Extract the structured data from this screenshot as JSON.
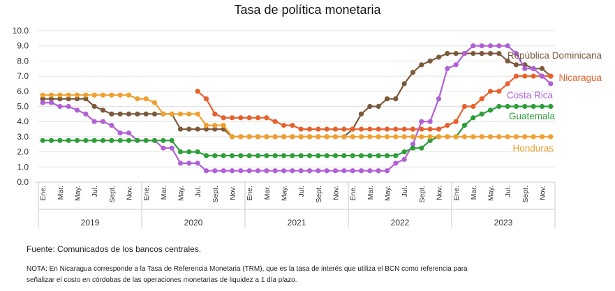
{
  "chart_data": {
    "type": "line",
    "title": "Tasa de política monetaria",
    "ylim": [
      0,
      10
    ],
    "yticks": [
      "0.0",
      "1.0",
      "2.0",
      "3.0",
      "4.0",
      "5.0",
      "6.0",
      "7.0",
      "8.0",
      "9.0",
      "10.0"
    ],
    "years": [
      "2019",
      "2020",
      "2021",
      "2022",
      "2023"
    ],
    "month_labels": [
      "Ene.",
      "Mar.",
      "May.",
      "Jul.",
      "Sept.",
      "Nov."
    ],
    "grid": true,
    "series": [
      {
        "name": "República Dominicana",
        "color": "#7a5a3a",
        "values": [
          5.5,
          5.5,
          5.5,
          5.5,
          5.5,
          5.5,
          5.0,
          4.75,
          4.5,
          4.5,
          4.5,
          4.5,
          4.5,
          4.5,
          4.5,
          4.5,
          3.5,
          3.5,
          3.5,
          3.5,
          3.5,
          3.5,
          3.0,
          3.0,
          3.0,
          3.0,
          3.0,
          3.0,
          3.0,
          3.0,
          3.0,
          3.0,
          3.0,
          3.0,
          3.0,
          3.0,
          3.5,
          4.5,
          5.0,
          5.0,
          5.5,
          5.5,
          6.5,
          7.25,
          7.75,
          8.0,
          8.25,
          8.5,
          8.5,
          8.5,
          8.5,
          8.5,
          8.5,
          8.5,
          8.0,
          7.75,
          7.75,
          7.5,
          7.5,
          7.0
        ]
      },
      {
        "name": "Nicaragua",
        "color": "#e8612c",
        "values": [
          null,
          null,
          null,
          null,
          null,
          null,
          null,
          null,
          null,
          null,
          null,
          null,
          null,
          null,
          null,
          null,
          null,
          null,
          6.0,
          5.5,
          4.5,
          4.25,
          4.25,
          4.25,
          4.25,
          4.25,
          4.25,
          4.0,
          3.75,
          3.75,
          3.5,
          3.5,
          3.5,
          3.5,
          3.5,
          3.5,
          3.5,
          3.5,
          3.5,
          3.5,
          3.5,
          3.5,
          3.5,
          3.5,
          3.5,
          3.5,
          3.5,
          3.75,
          4.0,
          5.0,
          5.0,
          5.5,
          6.0,
          6.0,
          6.5,
          7.0,
          7.0,
          7.0,
          7.0,
          7.0
        ]
      },
      {
        "name": "Costa Rica",
        "color": "#b160d6",
        "values": [
          5.25,
          5.25,
          5.0,
          5.0,
          4.75,
          4.5,
          4.0,
          4.0,
          3.75,
          3.25,
          3.25,
          2.75,
          2.75,
          2.75,
          2.25,
          2.25,
          1.25,
          1.25,
          1.25,
          0.75,
          0.75,
          0.75,
          0.75,
          0.75,
          0.75,
          0.75,
          0.75,
          0.75,
          0.75,
          0.75,
          0.75,
          0.75,
          0.75,
          0.75,
          0.75,
          0.75,
          0.75,
          0.75,
          0.75,
          0.75,
          0.75,
          1.25,
          1.5,
          2.5,
          4.0,
          4.0,
          5.5,
          7.5,
          7.75,
          8.5,
          9.0,
          9.0,
          9.0,
          9.0,
          9.0,
          8.5,
          7.5,
          7.5,
          7.0,
          6.5
        ]
      },
      {
        "name": "Guatemala",
        "color": "#2e9e3a",
        "values": [
          2.75,
          2.75,
          2.75,
          2.75,
          2.75,
          2.75,
          2.75,
          2.75,
          2.75,
          2.75,
          2.75,
          2.75,
          2.75,
          2.75,
          2.75,
          2.75,
          2.0,
          2.0,
          2.0,
          1.75,
          1.75,
          1.75,
          1.75,
          1.75,
          1.75,
          1.75,
          1.75,
          1.75,
          1.75,
          1.75,
          1.75,
          1.75,
          1.75,
          1.75,
          1.75,
          1.75,
          1.75,
          1.75,
          1.75,
          1.75,
          1.75,
          1.75,
          2.0,
          2.25,
          2.25,
          2.75,
          3.0,
          3.0,
          3.0,
          3.75,
          4.25,
          4.5,
          4.75,
          5.0,
          5.0,
          5.0,
          5.0,
          5.0,
          5.0,
          5.0
        ]
      },
      {
        "name": "Honduras",
        "color": "#f0a030",
        "values": [
          5.75,
          5.75,
          5.75,
          5.75,
          5.75,
          5.75,
          5.75,
          5.75,
          5.75,
          5.75,
          5.75,
          5.5,
          5.5,
          5.25,
          4.5,
          4.5,
          4.5,
          4.5,
          4.5,
          3.75,
          3.75,
          3.75,
          3.0,
          3.0,
          3.0,
          3.0,
          3.0,
          3.0,
          3.0,
          3.0,
          3.0,
          3.0,
          3.0,
          3.0,
          3.0,
          3.0,
          3.0,
          3.0,
          3.0,
          3.0,
          3.0,
          3.0,
          3.0,
          3.0,
          3.0,
          3.0,
          3.0,
          3.0,
          3.0,
          3.0,
          3.0,
          3.0,
          3.0,
          3.0,
          3.0,
          3.0,
          3.0,
          3.0,
          3.0,
          3.0
        ]
      }
    ]
  },
  "footer": {
    "source": "Fuente: Comunicados de los bancos centrales.",
    "note": "NOTA: En Nicaragua corresponde a la Tasa de Referencia Monetaria (TRM), que es la tasa de interés que utiliza el BCN como referencia para señalizar el costo en córdobas de las operaciones monetarias de liquidez a 1 día plazo."
  }
}
